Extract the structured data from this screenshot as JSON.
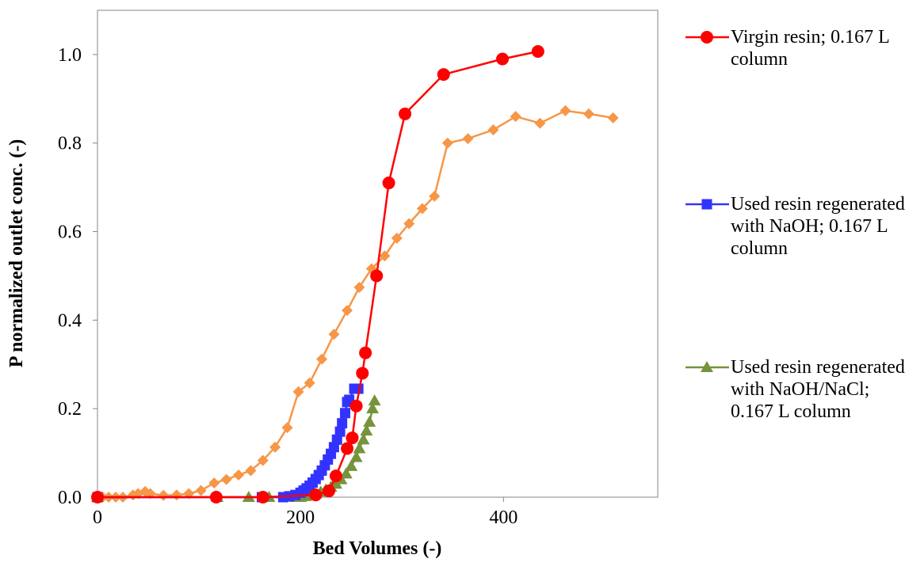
{
  "chart_data": {
    "type": "scatter-line",
    "x_label": "Bed Volumes (-)",
    "y_label": "P normalized outlet conc. (-)",
    "xlim": [
      0,
      552
    ],
    "ylim": [
      0,
      1.1
    ],
    "xticks": [
      0,
      200,
      400
    ],
    "yticks": [
      {
        "value": 0,
        "label": "0.0"
      },
      {
        "value": 0.2,
        "label": "0.2"
      },
      {
        "value": 0.4,
        "label": "0.4"
      },
      {
        "value": 0.6,
        "label": "0.6"
      },
      {
        "value": 0.8,
        "label": "0.8"
      },
      {
        "value": 1,
        "label": "1.0"
      }
    ],
    "grid": false,
    "legend": "right",
    "series": [
      {
        "name": "Virgin resin; 0.167 L column",
        "color": "#ff0000",
        "marker": "circle",
        "x": [
          0,
          117,
          163,
          215,
          228,
          235,
          246,
          251,
          255,
          261,
          264,
          275,
          287,
          303,
          341,
          399,
          434
        ],
        "values": [
          0,
          0,
          0,
          0.005,
          0.014,
          0.048,
          0.11,
          0.134,
          0.206,
          0.28,
          0.326,
          0.5,
          0.71,
          0.866,
          0.955,
          0.99,
          1.007
        ]
      },
      {
        "name": "Used resin regenerated with NaOH; 0.167 L column",
        "color": "#3333ff",
        "marker": "square",
        "x": [
          0,
          162,
          183,
          189,
          195,
          200,
          203,
          206,
          209,
          212,
          215,
          218,
          221,
          224,
          227,
          230,
          233,
          236,
          239,
          241,
          244,
          246,
          248,
          253,
          257
        ],
        "values": [
          0,
          0,
          0,
          0.002,
          0.005,
          0.01,
          0.015,
          0.02,
          0.026,
          0.033,
          0.041,
          0.05,
          0.06,
          0.072,
          0.085,
          0.098,
          0.113,
          0.13,
          0.148,
          0.167,
          0.19,
          0.215,
          0.22,
          0.245,
          0.245
        ]
      },
      {
        "name": "Used resin regenerated with NaOH/NaCl; 0.167 L column",
        "color": "#77933c",
        "marker": "triangle",
        "x": [
          0,
          118,
          149,
          169,
          195,
          200,
          205,
          210,
          215,
          220,
          225,
          230,
          235,
          240,
          245,
          250,
          255,
          258,
          262,
          265,
          268,
          271,
          273
        ],
        "values": [
          0,
          0,
          0,
          0,
          0,
          0,
          0.002,
          0.004,
          0.008,
          0.012,
          0.017,
          0.023,
          0.03,
          0.04,
          0.053,
          0.07,
          0.09,
          0.11,
          0.13,
          0.15,
          0.17,
          0.2,
          0.218
        ]
      },
      {
        "color": "#f79646",
        "marker": "diamond",
        "x": [
          0,
          5,
          11,
          18,
          25,
          35,
          40,
          47,
          52,
          65,
          78,
          90,
          102,
          115,
          127,
          139,
          151,
          163,
          175,
          187,
          198,
          209,
          221,
          233,
          246,
          258,
          270,
          283,
          295,
          307,
          320,
          332,
          345,
          365,
          390,
          412,
          436,
          461,
          484,
          508
        ],
        "values": [
          0,
          0,
          0,
          0,
          0,
          0.005,
          0.008,
          0.013,
          0.008,
          0.004,
          0.005,
          0.008,
          0.015,
          0.032,
          0.04,
          0.05,
          0.06,
          0.083,
          0.113,
          0.157,
          0.238,
          0.258,
          0.312,
          0.368,
          0.422,
          0.474,
          0.516,
          0.545,
          0.585,
          0.618,
          0.652,
          0.68,
          0.8,
          0.81,
          0.83,
          0.86,
          0.845,
          0.873,
          0.866,
          0.857
        ]
      }
    ]
  }
}
